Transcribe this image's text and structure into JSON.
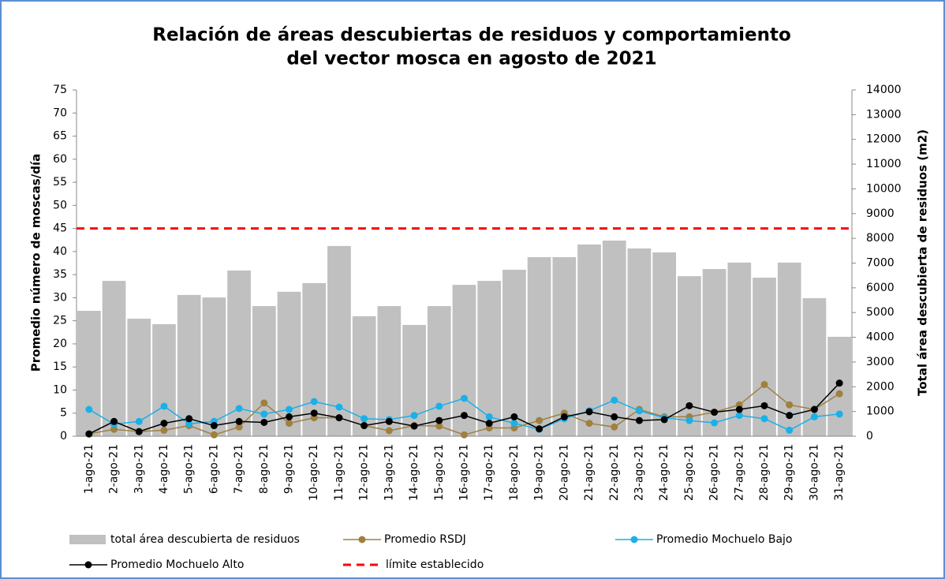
{
  "chart_data": {
    "type": "combo",
    "title": [
      "Relación de áreas descubiertas de residuos y comportamiento",
      "del vector mosca en agosto de 2021"
    ],
    "y_label": "Promedio número de moscas/día",
    "y2_label": "Total área descubierta de residuos (m2)",
    "categories": [
      "1-ago-21",
      "2-ago-21",
      "3-ago-21",
      "4-ago-21",
      "5-ago-21",
      "6-ago-21",
      "7-ago-21",
      "8-ago-21",
      "9-ago-21",
      "10-ago-21",
      "11-ago-21",
      "12-ago-21",
      "13-ago-21",
      "14-ago-21",
      "15-ago-21",
      "16-ago-21",
      "17-ago-21",
      "18-ago-21",
      "19-ago-21",
      "20-ago-21",
      "21-ago-21",
      "22-ago-21",
      "23-ago-21",
      "24-ago-21",
      "25-ago-21",
      "26-ago-21",
      "27-ago-21",
      "28-ago-21",
      "29-ago-21",
      "30-ago-21",
      "31-ago-21"
    ],
    "series": [
      {
        "name": "total área descubierta de residuos",
        "type": "bar",
        "axis": "y2",
        "color": "#c0c0c0",
        "values": [
          5070,
          6280,
          4750,
          4530,
          5710,
          5610,
          6700,
          5260,
          5840,
          6190,
          7690,
          4850,
          5260,
          4500,
          5260,
          6120,
          6280,
          6730,
          7240,
          7240,
          7750,
          7910,
          7590,
          7430,
          6470,
          6760,
          7020,
          6410,
          7020,
          5580,
          4020
        ]
      },
      {
        "name": "Promedio RSDJ",
        "type": "line",
        "color": "#a0803f",
        "values": [
          0.5,
          1.5,
          1,
          1.3,
          2.3,
          0.3,
          2,
          7.2,
          2.8,
          4,
          4,
          2.3,
          1.2,
          2.3,
          2.2,
          0.3,
          1.8,
          1.8,
          3.4,
          5,
          2.8,
          2,
          5.8,
          4.2,
          4.2,
          5.2,
          6.8,
          11.2,
          6.8,
          5.8,
          9.2
        ]
      },
      {
        "name": "Promedio Mochuelo Bajo",
        "type": "line",
        "color": "#1ab0e8",
        "values": [
          5.8,
          2.6,
          3.2,
          6.5,
          2.7,
          3.2,
          6,
          4.8,
          5.8,
          7.5,
          6.3,
          3.8,
          3.6,
          4.5,
          6.5,
          8.2,
          4.2,
          2.8,
          1.5,
          3.8,
          5.5,
          7.8,
          5.5,
          4,
          3.4,
          2.9,
          4.5,
          3.8,
          1.3,
          4.2,
          4.8
        ]
      },
      {
        "name": "Promedio Mochuelo Alto",
        "type": "line",
        "color": "#000000",
        "values": [
          0.5,
          3.2,
          1,
          2.8,
          3.8,
          2.3,
          3.2,
          3,
          4.2,
          5,
          4,
          2.3,
          3.2,
          2.2,
          3.4,
          4.5,
          2.8,
          4.2,
          1.6,
          4.2,
          5.3,
          4.2,
          3.4,
          3.6,
          6.6,
          5.2,
          5.8,
          6.6,
          4.5,
          5.8,
          11.5
        ]
      }
    ],
    "reference_line": {
      "name": "límite establecido",
      "value": 45,
      "color": "#ff0000"
    },
    "ylim": [
      0,
      75
    ],
    "yticks": [
      0,
      5,
      10,
      15,
      20,
      25,
      30,
      35,
      40,
      45,
      50,
      55,
      60,
      65,
      70,
      75
    ],
    "y2lim": [
      0,
      14000
    ],
    "y2ticks": [
      0,
      1000,
      2000,
      3000,
      4000,
      5000,
      6000,
      7000,
      8000,
      9000,
      10000,
      11000,
      12000,
      13000,
      14000
    ]
  }
}
